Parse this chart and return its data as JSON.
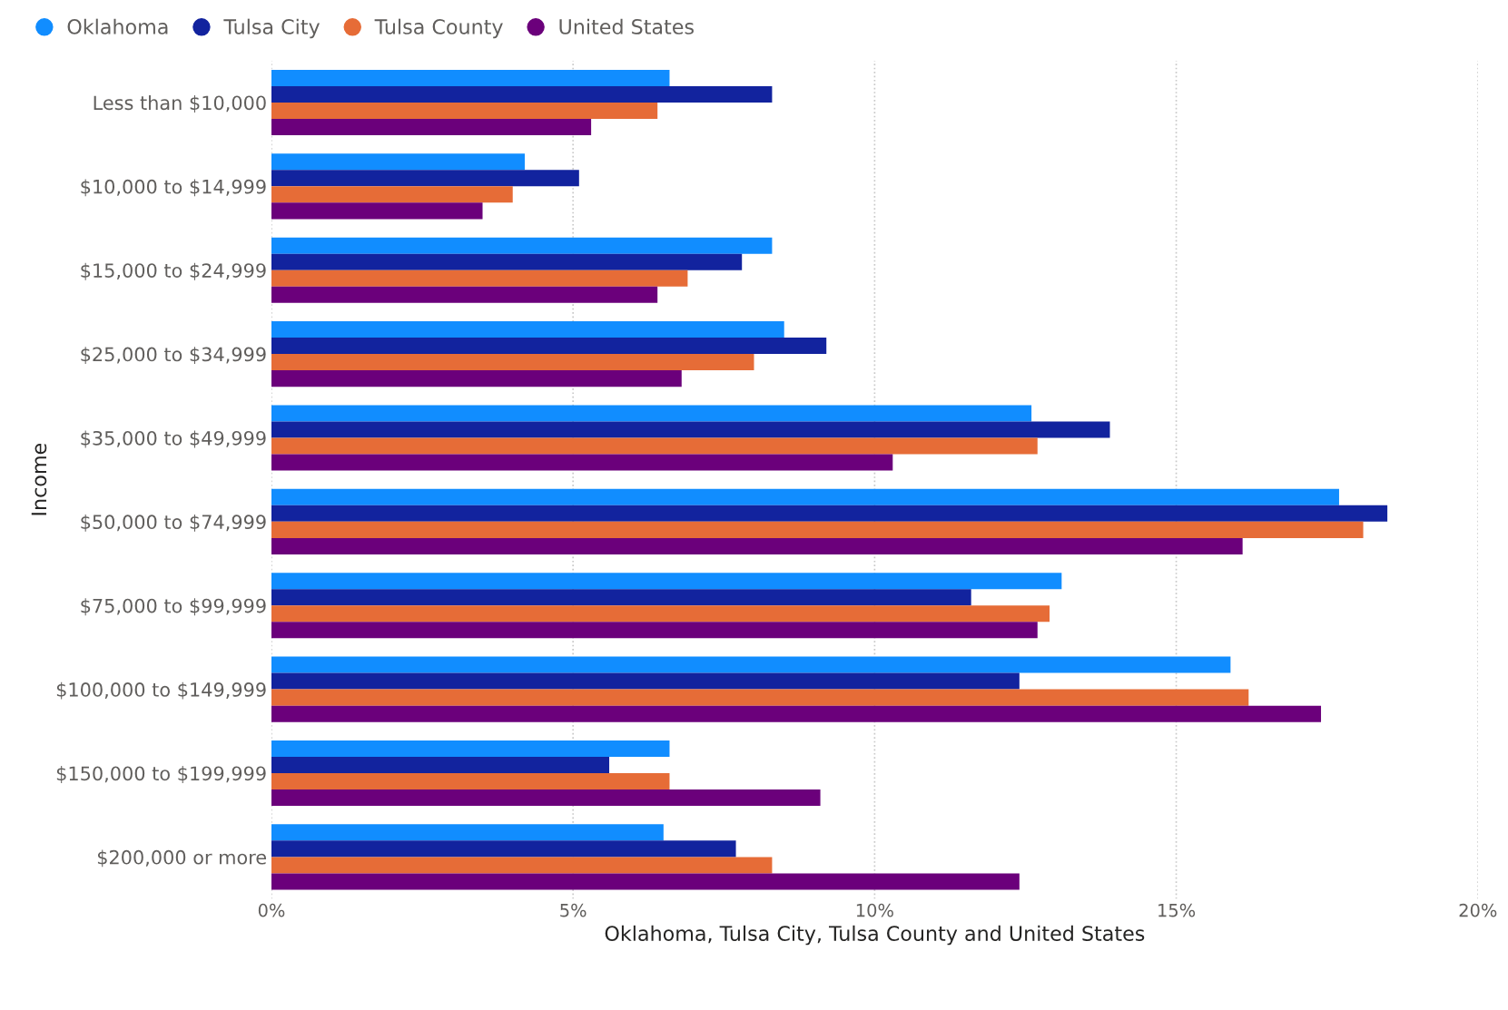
{
  "chart_data": {
    "type": "bar",
    "orientation": "horizontal",
    "xlabel": "Oklahoma, Tulsa City, Tulsa County and United States",
    "ylabel": "Income",
    "categories": [
      "Less than $10,000",
      "$10,000 to $14,999",
      "$15,000 to $24,999",
      "$25,000 to $34,999",
      "$35,000 to $49,999",
      "$50,000 to $74,999",
      "$75,000 to $99,999",
      "$100,000 to $149,999",
      "$150,000 to $199,999",
      "$200,000 or more"
    ],
    "series": [
      {
        "name": "Oklahoma",
        "color": "#118dff",
        "values": [
          6.6,
          4.2,
          8.3,
          8.5,
          12.6,
          17.7,
          13.1,
          15.9,
          6.6,
          6.5
        ]
      },
      {
        "name": "Tulsa City",
        "color": "#12239e",
        "values": [
          8.3,
          5.1,
          7.8,
          9.2,
          13.9,
          18.5,
          11.6,
          12.4,
          5.6,
          7.7
        ]
      },
      {
        "name": "Tulsa County",
        "color": "#e66c37",
        "values": [
          6.4,
          4.0,
          6.9,
          8.0,
          12.7,
          18.1,
          12.9,
          16.2,
          6.6,
          8.3
        ]
      },
      {
        "name": "United States",
        "color": "#6b007b",
        "values": [
          5.3,
          3.5,
          6.4,
          6.8,
          10.3,
          16.1,
          12.7,
          17.4,
          9.1,
          12.4
        ]
      }
    ],
    "xlim": [
      0,
      20
    ],
    "xticks": [
      {
        "value": 0,
        "label": "0%"
      },
      {
        "value": 5,
        "label": "5%"
      },
      {
        "value": 10,
        "label": "10%"
      },
      {
        "value": 15,
        "label": "15%"
      },
      {
        "value": 20,
        "label": "20%"
      }
    ],
    "grid": "x",
    "legend": "top left",
    "marker": "circle"
  }
}
